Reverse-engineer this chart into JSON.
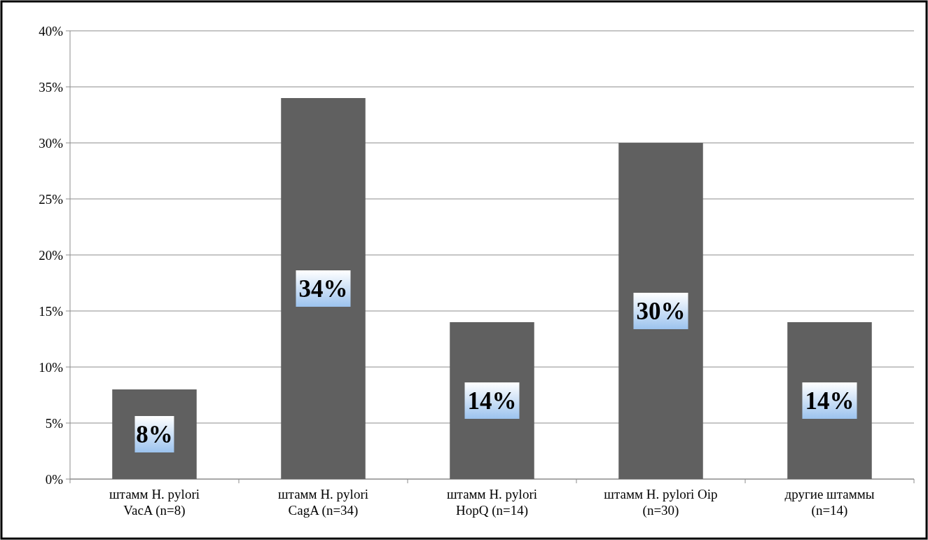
{
  "chart_data": {
    "type": "bar",
    "categories": [
      "штамм H. pylori VacA (n=8)",
      "штамм H. pylori CagA (n=34)",
      "штамм H. pylori HopQ (n=14)",
      "штамм H. pylori Oip (n=30)",
      "другие штаммы (n=14)"
    ],
    "values": [
      8,
      34,
      14,
      30,
      14
    ],
    "color": "#606060",
    "value_labels": [
      "8%",
      "34%",
      "14%",
      "30%",
      "14%"
    ],
    "ylim": [
      0,
      40
    ],
    "yticks": [
      {
        "value": 0,
        "label": "0%"
      },
      {
        "value": 5,
        "label": "5%"
      },
      {
        "value": 10,
        "label": "10%"
      },
      {
        "value": 15,
        "label": "15%"
      },
      {
        "value": 20,
        "label": "20%"
      },
      {
        "value": 25,
        "label": "25%"
      },
      {
        "value": 30,
        "label": "30%"
      },
      {
        "value": 35,
        "label": "35%"
      },
      {
        "value": 40,
        "label": "40%"
      }
    ],
    "grid": "y"
  }
}
